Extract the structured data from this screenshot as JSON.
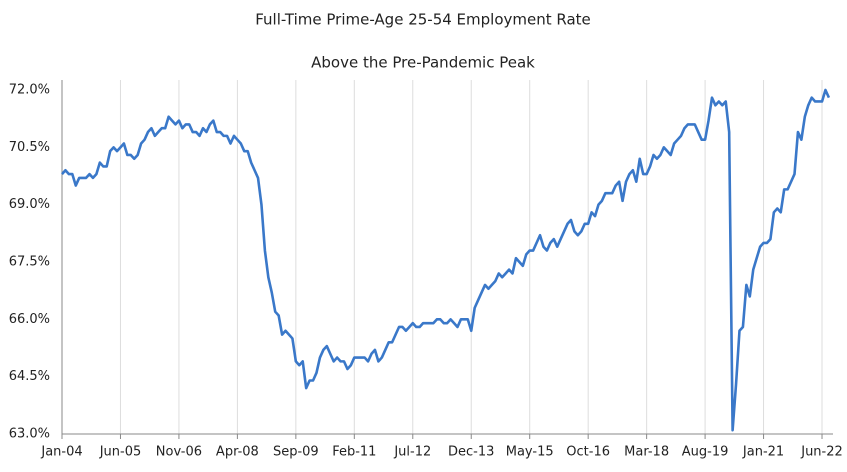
{
  "chart_data": {
    "type": "line",
    "title": "Full-Time Prime-Age 25-54 Employment Rate",
    "subtitle": "Above the Pre-Pandemic Peak",
    "categories": [
      "Jan-04",
      null,
      null,
      null,
      null,
      null,
      null,
      null,
      null,
      null,
      null,
      null,
      null,
      null,
      null,
      null,
      null,
      "Jun-05",
      null,
      null,
      null,
      null,
      null,
      null,
      null,
      null,
      null,
      null,
      null,
      null,
      null,
      null,
      null,
      null,
      "Nov-06",
      null,
      null,
      null,
      null,
      null,
      null,
      null,
      null,
      null,
      null,
      null,
      null,
      null,
      null,
      null,
      null,
      "Apr-08",
      null,
      null,
      null,
      null,
      null,
      null,
      null,
      null,
      null,
      null,
      null,
      null,
      null,
      null,
      null,
      null,
      "Sep-09",
      null,
      null,
      null,
      null,
      null,
      null,
      null,
      null,
      null,
      null,
      null,
      null,
      null,
      null,
      null,
      null,
      "Feb-11",
      null,
      null,
      null,
      null,
      null,
      null,
      null,
      null,
      null,
      null,
      null,
      null,
      null,
      null,
      null,
      null,
      "Jul-12",
      null,
      null,
      null,
      null,
      null,
      null,
      null,
      null,
      null,
      null,
      null,
      null,
      null,
      null,
      null,
      null,
      "Dec-13",
      null,
      null,
      null,
      null,
      null,
      null,
      null,
      null,
      null,
      null,
      null,
      null,
      null,
      null,
      null,
      null,
      "May-15",
      null,
      null,
      null,
      null,
      null,
      null,
      null,
      null,
      null,
      null,
      null,
      null,
      null,
      null,
      null,
      null,
      "Oct-16",
      null,
      null,
      null,
      null,
      null,
      null,
      null,
      null,
      null,
      null,
      null,
      null,
      null,
      null,
      null,
      null,
      "Mar-18",
      null,
      null,
      null,
      null,
      null,
      null,
      null,
      null,
      null,
      null,
      null,
      null,
      null,
      null,
      null,
      null,
      "Aug-19",
      null,
      null,
      null,
      null,
      null,
      null,
      null,
      null,
      null,
      null,
      null,
      null,
      null,
      null,
      null,
      null,
      "Jan-21",
      null,
      null,
      null,
      null,
      null,
      null,
      null,
      null,
      null,
      null,
      null,
      null,
      null,
      null,
      null,
      null,
      "Jun-22",
      null,
      null
    ],
    "series": [
      {
        "name": "Full-Time Prime-Age 25-54 Employment Rate",
        "color": "#3a78c9",
        "values": [
          69.8,
          69.9,
          69.8,
          69.8,
          69.5,
          69.7,
          69.7,
          69.7,
          69.8,
          69.7,
          69.8,
          70.1,
          70.0,
          70.0,
          70.4,
          70.5,
          70.4,
          70.5,
          70.6,
          70.3,
          70.3,
          70.2,
          70.3,
          70.6,
          70.7,
          70.9,
          71.0,
          70.8,
          70.9,
          71.0,
          71.0,
          71.3,
          71.2,
          71.1,
          71.2,
          71.0,
          71.1,
          71.1,
          70.9,
          70.9,
          70.8,
          71.0,
          70.9,
          71.1,
          71.2,
          70.9,
          70.9,
          70.8,
          70.8,
          70.6,
          70.8,
          70.7,
          70.6,
          70.4,
          70.4,
          70.1,
          69.9,
          69.7,
          69.0,
          67.8,
          67.1,
          66.7,
          66.2,
          66.1,
          65.6,
          65.7,
          65.6,
          65.5,
          64.9,
          64.8,
          64.9,
          64.2,
          64.4,
          64.4,
          64.6,
          65.0,
          65.2,
          65.3,
          65.1,
          64.9,
          65.0,
          64.9,
          64.9,
          64.7,
          64.8,
          65.0,
          65.0,
          65.0,
          65.0,
          64.9,
          65.1,
          65.2,
          64.9,
          65.0,
          65.2,
          65.4,
          65.4,
          65.6,
          65.8,
          65.8,
          65.7,
          65.8,
          65.9,
          65.8,
          65.8,
          65.9,
          65.9,
          65.9,
          65.9,
          66.0,
          66.0,
          65.9,
          65.9,
          66.0,
          65.9,
          65.8,
          66.0,
          66.0,
          66.0,
          65.7,
          66.3,
          66.5,
          66.7,
          66.9,
          66.8,
          66.9,
          67.0,
          67.2,
          67.1,
          67.2,
          67.3,
          67.2,
          67.6,
          67.5,
          67.4,
          67.7,
          67.8,
          67.8,
          68.0,
          68.2,
          67.9,
          67.8,
          68.0,
          68.1,
          67.9,
          68.1,
          68.3,
          68.5,
          68.6,
          68.3,
          68.2,
          68.3,
          68.5,
          68.5,
          68.8,
          68.7,
          69.0,
          69.1,
          69.3,
          69.3,
          69.3,
          69.5,
          69.6,
          69.1,
          69.6,
          69.8,
          69.9,
          69.6,
          70.2,
          69.8,
          69.8,
          70.0,
          70.3,
          70.2,
          70.3,
          70.5,
          70.4,
          70.3,
          70.6,
          70.7,
          70.8,
          71.0,
          71.1,
          71.1,
          71.1,
          70.9,
          70.7,
          70.7,
          71.2,
          71.8,
          71.6,
          71.7,
          71.6,
          71.7,
          70.9,
          63.1,
          64.3,
          65.7,
          65.8,
          66.9,
          66.6,
          67.3,
          67.6,
          67.9,
          68.0,
          68.0,
          68.1,
          68.8,
          68.9,
          68.8,
          69.4,
          69.4,
          69.6,
          69.8,
          70.9,
          70.7,
          71.3,
          71.6,
          71.8,
          71.7,
          71.7,
          71.7,
          72.0,
          71.8
        ]
      }
    ],
    "ylim": [
      63,
      72
    ],
    "yticks": [
      {
        "value": 63,
        "label": "63.0%"
      },
      {
        "value": 64.5,
        "label": "64.5%"
      },
      {
        "value": 66,
        "label": "66.0%"
      },
      {
        "value": 67.5,
        "label": "67.5%"
      },
      {
        "value": 69,
        "label": "69.0%"
      },
      {
        "value": 70.5,
        "label": "70.5%"
      },
      {
        "value": 72,
        "label": "72.0%"
      }
    ],
    "grid": "x"
  }
}
